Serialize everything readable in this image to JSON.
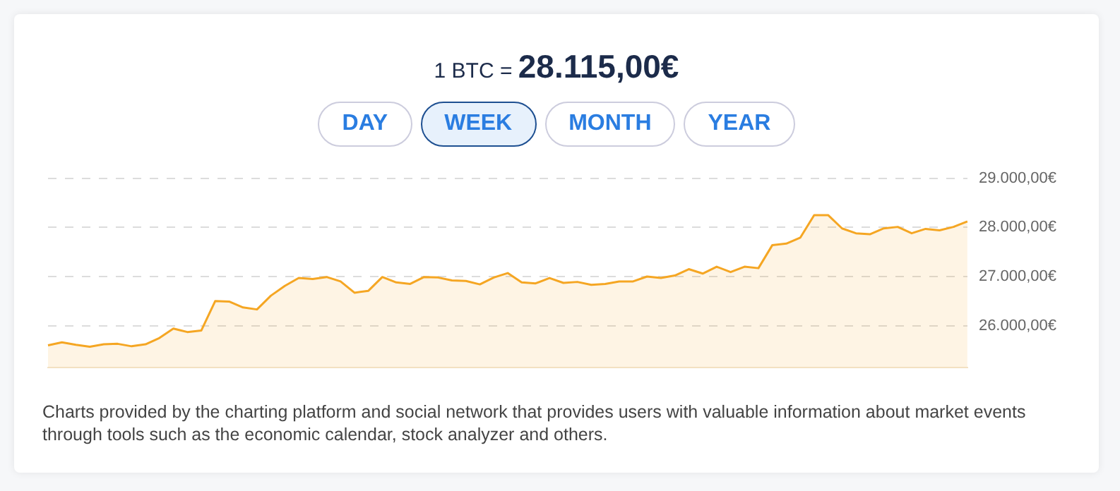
{
  "chart_data": {
    "type": "area",
    "title": "1 BTC = 28.115,00€",
    "annotations": [
      "DAY",
      "WEEK",
      "MONTH",
      "YEAR",
      "Charts provided by the charting platform and social network that provides users with valuable information about market events through tools such as the economic calendar, stock analyzer and others."
    ],
    "categories": [
      null,
      null,
      null,
      null,
      null,
      null,
      null,
      null,
      null,
      null,
      null,
      null,
      null,
      null,
      null,
      null,
      null,
      null,
      null,
      null,
      null,
      null,
      null,
      null,
      null,
      null,
      null,
      null,
      null,
      null,
      null,
      null,
      null,
      null,
      null,
      null,
      null,
      null,
      null,
      null,
      null,
      null,
      null,
      null,
      null,
      null,
      null,
      null,
      null,
      null,
      null,
      null,
      null,
      null,
      null,
      null,
      null,
      null,
      null,
      null,
      null,
      null,
      null,
      null,
      null,
      null,
      null
    ],
    "series": [
      {
        "color": "#f5a623",
        "values": [
          25600,
          25660,
          25610,
          25570,
          25620,
          25630,
          25580,
          25620,
          25750,
          25940,
          25870,
          25900,
          26500,
          26490,
          26370,
          26330,
          26610,
          26810,
          26970,
          26950,
          26990,
          26900,
          26670,
          26710,
          26990,
          26880,
          26850,
          26990,
          26980,
          26920,
          26910,
          26840,
          26980,
          27070,
          26880,
          26860,
          26970,
          26870,
          26890,
          26830,
          26850,
          26900,
          26900,
          27000,
          26970,
          27020,
          27150,
          27060,
          27200,
          27090,
          27200,
          27170,
          27640,
          27670,
          27790,
          28250,
          28250,
          27980,
          27880,
          27860,
          27980,
          28010,
          27880,
          27970,
          27940,
          28010,
          28120
        ]
      }
    ],
    "ylim": [
      25150,
      29050
    ],
    "yticks": [
      {
        "value": 26000,
        "label": "26.000,00€"
      },
      {
        "value": 27000,
        "label": "27.000,00€"
      },
      {
        "value": 28000,
        "label": "28.000,00€"
      },
      {
        "value": 29000,
        "label": "29.000,00€"
      }
    ],
    "grid": "y",
    "legend": false,
    "tick_labels": "y",
    "marker": "none",
    "line_style": "solid"
  }
}
